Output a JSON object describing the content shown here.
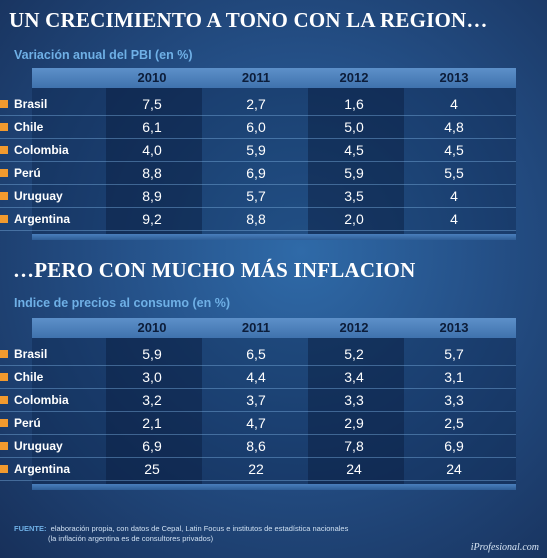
{
  "chart_data": [
    {
      "type": "table",
      "title": "UN CRECIMIENTO A TONO CON LA REGION…",
      "subtitle": "Variación anual del PBI (en %)",
      "columns": [
        "2010",
        "2011",
        "2012",
        "2013"
      ],
      "rows": [
        {
          "country": "Brasil",
          "values": [
            "7,5",
            "2,7",
            "1,6",
            "4"
          ]
        },
        {
          "country": "Chile",
          "values": [
            "6,1",
            "6,0",
            "5,0",
            "4,8"
          ]
        },
        {
          "country": "Colombia",
          "values": [
            "4,0",
            "5,9",
            "4,5",
            "4,5"
          ]
        },
        {
          "country": "Perú",
          "values": [
            "8,8",
            "6,9",
            "5,9",
            "5,5"
          ]
        },
        {
          "country": "Uruguay",
          "values": [
            "8,9",
            "5,7",
            "3,5",
            "4"
          ]
        },
        {
          "country": "Argentina",
          "values": [
            "9,2",
            "8,8",
            "2,0",
            "4"
          ]
        }
      ]
    },
    {
      "type": "table",
      "title": "…PERO CON MUCHO MÁS INFLACION",
      "subtitle": "Indice de precios al consumo (en %)",
      "columns": [
        "2010",
        "2011",
        "2012",
        "2013"
      ],
      "rows": [
        {
          "country": "Brasil",
          "values": [
            "5,9",
            "6,5",
            "5,2",
            "5,7"
          ]
        },
        {
          "country": "Chile",
          "values": [
            "3,0",
            "4,4",
            "3,4",
            "3,1"
          ]
        },
        {
          "country": "Colombia",
          "values": [
            "3,2",
            "3,7",
            "3,3",
            "3,3"
          ]
        },
        {
          "country": "Perú",
          "values": [
            "2,1",
            "4,7",
            "2,9",
            "2,5"
          ]
        },
        {
          "country": "Uruguay",
          "values": [
            "6,9",
            "8,6",
            "7,8",
            "6,9"
          ]
        },
        {
          "country": "Argentina",
          "values": [
            "25",
            "22",
            "24",
            "24"
          ]
        }
      ]
    }
  ],
  "footer": {
    "label": "FUENTE:",
    "line1": "elaboración propia, con datos de Cepal, Latin Focus e institutos de estadística nacionales",
    "line2": "(la inflación argentina es de consultores privados)"
  },
  "brand": "iProfesional.com",
  "colors": {
    "background": "#244f86",
    "header": "#5d90c9",
    "subtitle": "#6fb0e6",
    "bullet": "#f29a2e"
  }
}
